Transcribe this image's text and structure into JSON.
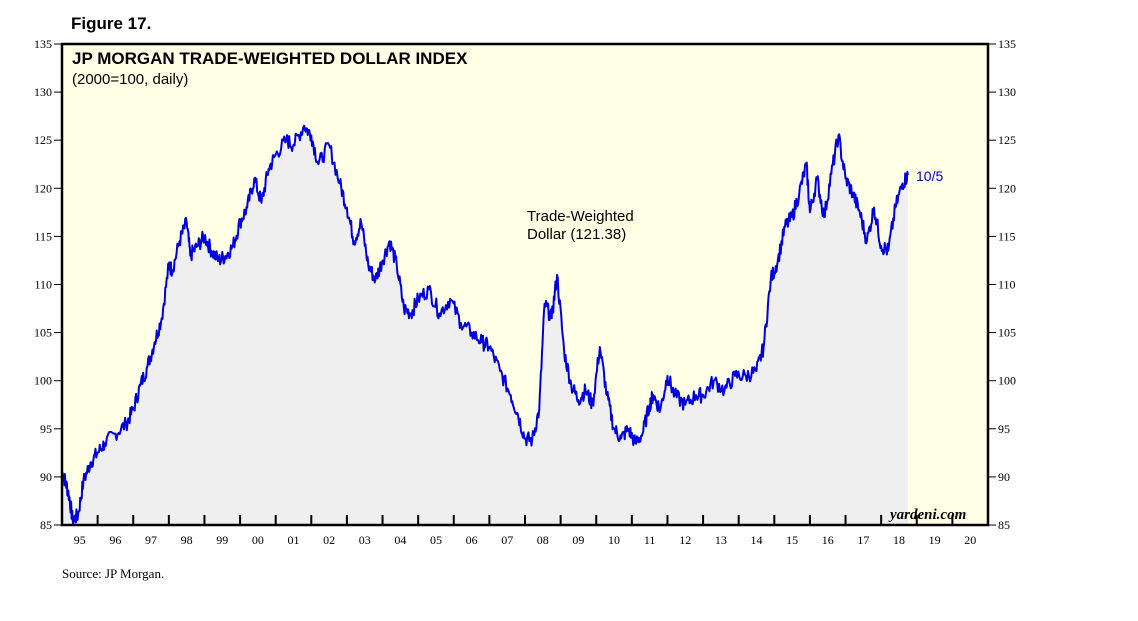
{
  "figure_label": "Figure 17.",
  "source": "Source: JP Morgan.",
  "chart_data": {
    "type": "area",
    "title": "JP MORGAN TRADE-WEIGHTED DOLLAR INDEX",
    "subtitle": "(2000=100, daily)",
    "ylim": [
      85,
      135
    ],
    "yticks": [
      "85",
      "90",
      "95",
      "100",
      "105",
      "110",
      "115",
      "120",
      "125",
      "130",
      "135"
    ],
    "xlim": [
      1995,
      2021
    ],
    "xticks": [
      "95",
      "96",
      "97",
      "98",
      "99",
      "00",
      "01",
      "02",
      "03",
      "04",
      "05",
      "06",
      "07",
      "08",
      "09",
      "10",
      "11",
      "12",
      "13",
      "14",
      "15",
      "16",
      "17",
      "18",
      "19",
      "20"
    ],
    "series": [
      {
        "name": "Trade-Weighted Dollar (121.38)",
        "color": "#0000dd",
        "x": [
          1995.0,
          1995.1,
          1995.2,
          1995.3,
          1995.45,
          1995.6,
          1995.8,
          1996.0,
          1996.2,
          1996.5,
          1996.8,
          1997.0,
          1997.2,
          1997.4,
          1997.6,
          1997.8,
          1998.0,
          1998.1,
          1998.3,
          1998.5,
          1998.6,
          1998.8,
          1999.0,
          1999.2,
          1999.4,
          1999.6,
          1999.8,
          2000.0,
          2000.2,
          2000.4,
          2000.6,
          2000.8,
          2001.0,
          2001.3,
          2001.5,
          2001.8,
          2002.0,
          2002.2,
          2002.5,
          2002.8,
          2003.0,
          2003.2,
          2003.4,
          2003.6,
          2003.8,
          2004.0,
          2004.2,
          2004.4,
          2004.6,
          2004.8,
          2005.0,
          2005.3,
          2005.6,
          2005.9,
          2006.2,
          2006.5,
          2006.8,
          2007.0,
          2007.3,
          2007.6,
          2007.8,
          2008.0,
          2008.2,
          2008.4,
          2008.55,
          2008.75,
          2008.9,
          2009.1,
          2009.3,
          2009.5,
          2009.7,
          2009.9,
          2010.1,
          2010.3,
          2010.5,
          2010.7,
          2010.9,
          2011.1,
          2011.3,
          2011.5,
          2011.6,
          2011.8,
          2012.0,
          2012.2,
          2012.5,
          2012.8,
          2013.0,
          2013.3,
          2013.6,
          2013.9,
          2014.2,
          2014.5,
          2014.7,
          2014.9,
          2015.1,
          2015.3,
          2015.5,
          2015.7,
          2015.9,
          2016.0,
          2016.2,
          2016.4,
          2016.6,
          2016.8,
          2017.0,
          2017.2,
          2017.4,
          2017.6,
          2017.8,
          2018.0,
          2018.2,
          2018.4,
          2018.6,
          2018.75
        ],
        "y": [
          90.5,
          89.5,
          88.0,
          85.5,
          86.0,
          89.5,
          91.5,
          92.5,
          93.5,
          94.5,
          95.5,
          97.0,
          99.5,
          101.5,
          104.0,
          106.5,
          112.0,
          111.5,
          114.5,
          116.5,
          113.0,
          114.0,
          115.0,
          113.5,
          112.5,
          113.0,
          114.0,
          116.5,
          118.0,
          121.0,
          118.5,
          122.0,
          123.5,
          125.0,
          124.5,
          126.5,
          125.5,
          122.5,
          124.5,
          120.5,
          118.0,
          114.5,
          116.5,
          112.0,
          110.5,
          112.5,
          114.5,
          112.0,
          107.5,
          107.0,
          108.5,
          109.5,
          107.0,
          108.5,
          106.0,
          105.0,
          104.0,
          103.5,
          101.0,
          98.5,
          96.5,
          94.0,
          93.8,
          97.0,
          108.0,
          106.5,
          111.0,
          103.0,
          99.5,
          98.0,
          99.0,
          97.5,
          103.5,
          98.5,
          95.0,
          94.0,
          95.0,
          93.5,
          94.5,
          97.5,
          98.5,
          97.0,
          100.5,
          98.5,
          97.5,
          98.5,
          98.5,
          100.0,
          99.0,
          100.5,
          100.5,
          101.0,
          103.5,
          110.5,
          112.5,
          116.0,
          117.0,
          119.5,
          122.5,
          117.5,
          121.0,
          117.0,
          121.5,
          125.5,
          121.0,
          119.5,
          117.5,
          114.5,
          118.0,
          114.0,
          113.5,
          118.0,
          120.5,
          121.38
        ]
      }
    ],
    "annotations": {
      "series_label_line1": "Trade-Weighted",
      "series_label_line2": "Dollar (121.38)",
      "end_date_label": "10/5",
      "brand": "yardeni.com"
    },
    "colors": {
      "background": "#ffffe6",
      "area_fill": "#efeff0",
      "line": "#0000dd"
    }
  }
}
